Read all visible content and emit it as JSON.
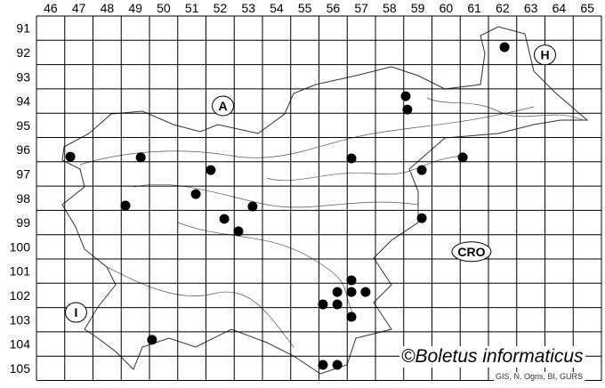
{
  "map": {
    "columns": [
      "46",
      "47",
      "48",
      "49",
      "50",
      "51",
      "52",
      "53",
      "54",
      "55",
      "56",
      "57",
      "58",
      "59",
      "60",
      "61",
      "62",
      "63",
      "64",
      "65"
    ],
    "rows": [
      "91",
      "92",
      "93",
      "94",
      "95",
      "96",
      "97",
      "98",
      "99",
      "100",
      "101",
      "102",
      "103",
      "104",
      "105"
    ],
    "region_labels": [
      {
        "text": "A",
        "col": 52.6,
        "row": 94.7
      },
      {
        "text": "H",
        "col": 64.0,
        "row": 92.6
      },
      {
        "text": "CRO",
        "col": 61.4,
        "row": 100.7
      },
      {
        "text": "I",
        "col": 47.4,
        "row": 103.2
      }
    ],
    "occurrences": [
      {
        "col": 62.57,
        "row": 92.28
      },
      {
        "col": 59.07,
        "row": 94.3
      },
      {
        "col": 59.13,
        "row": 94.85
      },
      {
        "col": 47.2,
        "row": 96.79
      },
      {
        "col": 49.69,
        "row": 96.82
      },
      {
        "col": 52.17,
        "row": 97.34
      },
      {
        "col": 57.15,
        "row": 96.86
      },
      {
        "col": 59.64,
        "row": 97.34
      },
      {
        "col": 61.09,
        "row": 96.82
      },
      {
        "col": 51.64,
        "row": 98.33
      },
      {
        "col": 49.15,
        "row": 98.8
      },
      {
        "col": 53.65,
        "row": 98.84
      },
      {
        "col": 52.65,
        "row": 99.35
      },
      {
        "col": 53.15,
        "row": 99.86
      },
      {
        "col": 59.64,
        "row": 99.32
      },
      {
        "col": 57.15,
        "row": 101.88
      },
      {
        "col": 56.65,
        "row": 102.36
      },
      {
        "col": 57.15,
        "row": 102.36
      },
      {
        "col": 57.65,
        "row": 102.36
      },
      {
        "col": 56.14,
        "row": 102.87
      },
      {
        "col": 56.65,
        "row": 102.87
      },
      {
        "col": 57.15,
        "row": 103.38
      },
      {
        "col": 50.09,
        "row": 104.33
      },
      {
        "col": 56.14,
        "row": 105.36
      },
      {
        "col": 56.65,
        "row": 105.36
      }
    ],
    "dot_color": "#000000"
  },
  "credit": "©Boletus informaticus",
  "source": "GIS, N. Ogris, BI, GURS"
}
